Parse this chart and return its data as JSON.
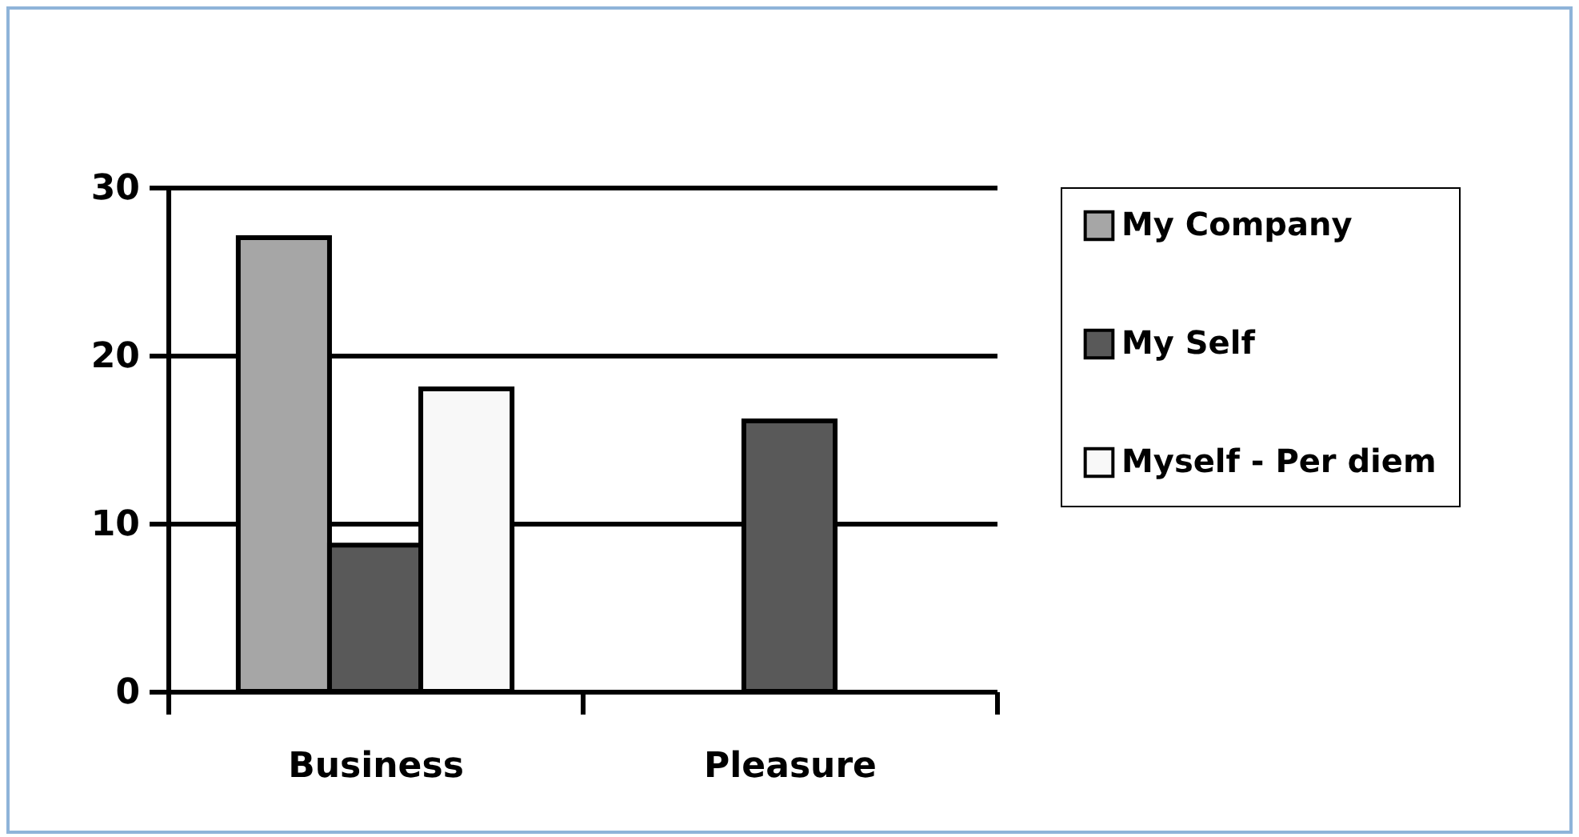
{
  "chart_data": {
    "type": "bar",
    "categories": [
      "Business",
      "Pleasure"
    ],
    "series": [
      {
        "name": "My Company",
        "color": "#a6a6a6",
        "values": [
          27,
          null
        ]
      },
      {
        "name": "My Self",
        "color": "#595959",
        "values": [
          8.7,
          16.1
        ]
      },
      {
        "name": "Myself - Per diem",
        "color": "#f8f8f8",
        "values": [
          18,
          null
        ]
      }
    ],
    "ylim": [
      0,
      30
    ],
    "yticks": [
      0,
      10,
      20,
      30
    ],
    "grid": "y",
    "legend": "right"
  }
}
